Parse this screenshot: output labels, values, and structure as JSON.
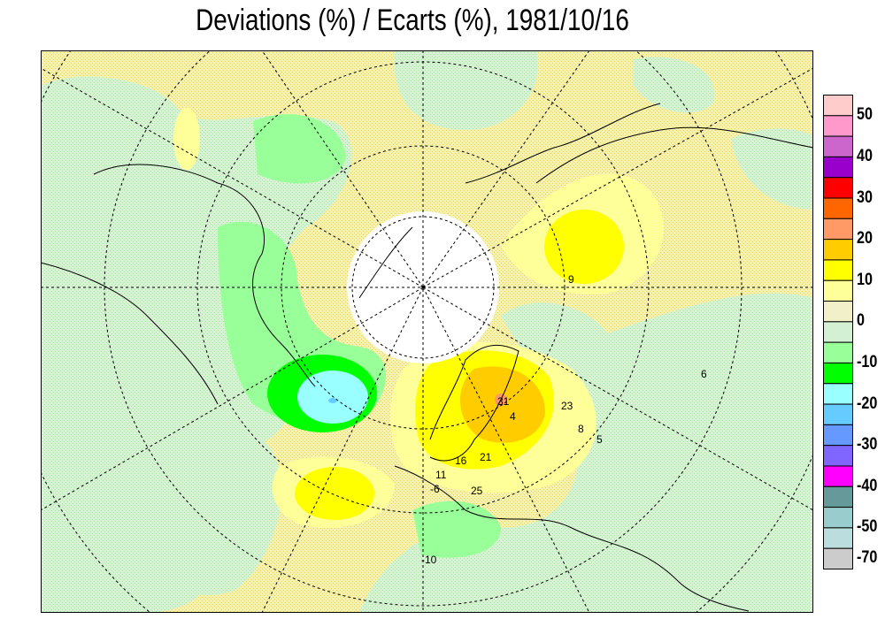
{
  "title": "Deviations (%) / Ecarts (%), 1981/10/16",
  "legend": {
    "labels": [
      "50",
      "40",
      "30",
      "20",
      "10",
      "0",
      "-10",
      "-20",
      "-30",
      "-40",
      "-50",
      "-70"
    ],
    "colors": [
      "#ffcccc",
      "#ff99cc",
      "#cc66cc",
      "#9900cc",
      "#ff0000",
      "#ff6600",
      "#ff9966",
      "#ffcc00",
      "#ffff00",
      "#ffff99",
      "#f2f0c8",
      "#d4f0d4",
      "#99ff99",
      "#00ff00",
      "#99ffff",
      "#66ccff",
      "#6699ff",
      "#8066ff",
      "#ff00ff",
      "#669999",
      "#99cccc",
      "#bbdddd",
      "#cccccc"
    ]
  },
  "map": {
    "projection": "polar stereographic, northern hemisphere",
    "no_data_color": "#ffffff",
    "station_values": [
      "31",
      "23",
      "8",
      "5",
      "16",
      "21",
      "11",
      "-6",
      "25",
      "-10",
      "4",
      "9",
      "6"
    ]
  }
}
